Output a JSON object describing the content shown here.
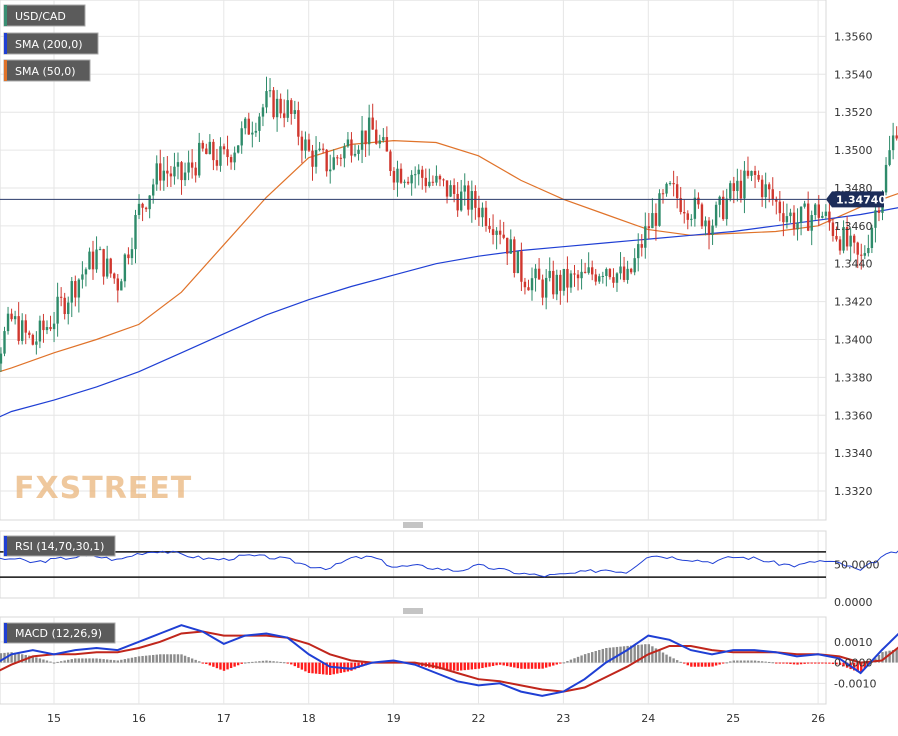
{
  "chart_data": [
    {
      "type": "line",
      "panel": "price",
      "legend_placement": "top-left",
      "series": [
        {
          "name": "USD/CAD",
          "kind": "candlestick",
          "color": "#3a3a3a",
          "x": [
            14.0,
            14.25,
            14.5,
            14.75,
            15.0,
            15.25,
            15.5,
            15.75,
            16.0,
            16.25,
            16.5,
            16.75,
            17.0,
            17.25,
            17.5,
            17.75,
            18.0,
            18.25,
            18.5,
            18.75,
            19.0,
            19.25,
            19.5,
            19.75,
            20.0,
            20.25,
            20.5,
            20.75,
            21.0,
            21.25,
            21.5,
            21.75,
            22.0,
            22.25,
            22.5,
            22.75,
            23.0,
            23.25,
            23.5,
            23.75,
            24.0,
            24.25,
            24.5,
            24.75,
            25.0,
            25.25,
            25.5,
            25.75,
            25.85
          ],
          "values": [
            1.3355,
            1.3385,
            1.341,
            1.3398,
            1.3412,
            1.343,
            1.3445,
            1.343,
            1.3468,
            1.349,
            1.3485,
            1.3498,
            1.3495,
            1.351,
            1.3525,
            1.3522,
            1.3498,
            1.3492,
            1.3505,
            1.351,
            1.349,
            1.3488,
            1.3482,
            1.3476,
            1.347,
            1.346,
            1.3435,
            1.3428,
            1.343,
            1.3432,
            1.344,
            1.343,
            1.346,
            1.3478,
            1.347,
            1.3462,
            1.3478,
            1.3486,
            1.3472,
            1.3462,
            1.3468,
            1.3455,
            1.344,
            1.348,
            1.3528,
            1.3525,
            1.352,
            1.3498,
            1.3474
          ]
        },
        {
          "name": "SMA (200,0)",
          "color": "#1f3fd4",
          "x": [
            14.0,
            14.5,
            15.0,
            15.5,
            16.0,
            16.5,
            17.0,
            17.5,
            18.0,
            18.5,
            19.0,
            19.5,
            20.0,
            20.5,
            21.0,
            21.5,
            22.0,
            22.5,
            23.0,
            23.5,
            24.0,
            24.5,
            25.0,
            25.5,
            25.85
          ],
          "values": [
            1.3352,
            1.3362,
            1.3368,
            1.3375,
            1.3383,
            1.3393,
            1.3403,
            1.3413,
            1.3421,
            1.3428,
            1.3434,
            1.344,
            1.3444,
            1.3447,
            1.3449,
            1.3451,
            1.3453,
            1.3455,
            1.3457,
            1.346,
            1.3463,
            1.3466,
            1.347,
            1.3476,
            1.3479
          ]
        },
        {
          "name": "SMA (50,0)",
          "color": "#e0732a",
          "x": [
            14.0,
            14.5,
            15.0,
            15.5,
            16.0,
            16.5,
            17.0,
            17.5,
            18.0,
            18.5,
            19.0,
            19.5,
            20.0,
            20.5,
            21.0,
            21.5,
            22.0,
            22.5,
            23.0,
            23.5,
            24.0,
            24.5,
            25.0,
            25.5,
            25.85
          ],
          "values": [
            1.3378,
            1.3385,
            1.3393,
            1.34,
            1.3408,
            1.3425,
            1.345,
            1.3475,
            1.3496,
            1.3503,
            1.3505,
            1.3504,
            1.3497,
            1.3484,
            1.3474,
            1.3466,
            1.3458,
            1.3455,
            1.3456,
            1.3457,
            1.346,
            1.347,
            1.3478,
            1.3486,
            1.3488
          ]
        }
      ],
      "y_ticks": [
        "1.3320",
        "1.3340",
        "1.3360",
        "1.3380",
        "1.3400",
        "1.3420",
        "1.3440",
        "1.3460",
        "1.3480",
        "1.3500",
        "1.3520",
        "1.3540",
        "1.3560"
      ],
      "ylim": [
        1.331,
        1.3575
      ],
      "last_price": "1.34740",
      "grid": true
    },
    {
      "type": "line",
      "panel": "rsi",
      "series": [
        {
          "name": "RSI (14,70,30,1)",
          "color": "#1f3fd4",
          "x": [
            14.0,
            14.25,
            14.5,
            14.75,
            15.0,
            15.25,
            15.5,
            15.75,
            16.0,
            16.25,
            16.5,
            16.75,
            17.0,
            17.25,
            17.5,
            17.75,
            18.0,
            18.25,
            18.5,
            18.75,
            19.0,
            19.25,
            19.5,
            19.75,
            20.0,
            20.25,
            20.5,
            20.75,
            21.0,
            21.25,
            21.5,
            21.75,
            22.0,
            22.25,
            22.5,
            22.75,
            23.0,
            23.25,
            23.5,
            23.75,
            24.0,
            24.25,
            24.5,
            24.75,
            25.0,
            25.25,
            25.5,
            25.75,
            25.85
          ],
          "values": [
            45,
            55,
            60,
            53,
            58,
            62,
            63,
            57,
            68,
            72,
            66,
            60,
            58,
            64,
            62,
            58,
            48,
            44,
            60,
            62,
            46,
            48,
            44,
            40,
            48,
            42,
            36,
            32,
            34,
            38,
            42,
            38,
            65,
            62,
            58,
            54,
            62,
            60,
            52,
            48,
            56,
            52,
            40,
            62,
            74,
            68,
            66,
            56,
            48
          ]
        }
      ],
      "reference_lines": [
        70,
        30
      ],
      "y_ticks": [
        "0.0000",
        "50.0000"
      ],
      "ylim": [
        0,
        100
      ],
      "grid": true
    },
    {
      "type": "bar",
      "panel": "macd",
      "series": [
        {
          "name": "MACD (12,26,9)",
          "kind": "line",
          "color": "#1f3fd4",
          "x": [
            14.0,
            14.25,
            14.5,
            14.75,
            15.0,
            15.25,
            15.5,
            15.75,
            16.0,
            16.25,
            16.5,
            16.75,
            17.0,
            17.25,
            17.5,
            17.75,
            18.0,
            18.25,
            18.5,
            18.75,
            19.0,
            19.25,
            19.5,
            19.75,
            20.0,
            20.25,
            20.5,
            20.75,
            21.0,
            21.25,
            21.5,
            21.75,
            22.0,
            22.25,
            22.5,
            22.75,
            23.0,
            23.25,
            23.5,
            23.75,
            24.0,
            24.25,
            24.5,
            24.75,
            25.0,
            25.25,
            25.5,
            25.75,
            25.85
          ],
          "values": [
            -0.0006,
            -0.0002,
            0.0004,
            0.0006,
            0.0004,
            0.0006,
            0.0007,
            0.0006,
            0.001,
            0.0014,
            0.0018,
            0.0015,
            0.0009,
            0.0013,
            0.0014,
            0.0012,
            0.0004,
            -0.0002,
            -0.0003,
            0.0,
            0.0001,
            -0.0001,
            -0.0005,
            -0.0009,
            -0.0011,
            -0.001,
            -0.0014,
            -0.0016,
            -0.0014,
            -0.0008,
            0.0,
            0.0006,
            0.0013,
            0.0011,
            0.0006,
            0.0004,
            0.0006,
            0.0006,
            0.0005,
            0.0003,
            0.0004,
            0.0002,
            -0.0005,
            0.0006,
            0.0016,
            0.0014,
            0.0007,
            0.0002,
            0.0
          ]
        },
        {
          "name": "Signal",
          "kind": "line",
          "color": "#c0261c",
          "x": [
            14.0,
            14.25,
            14.5,
            14.75,
            15.0,
            15.25,
            15.5,
            15.75,
            16.0,
            16.25,
            16.5,
            16.75,
            17.0,
            17.25,
            17.5,
            17.75,
            18.0,
            18.25,
            18.5,
            18.75,
            19.0,
            19.25,
            19.5,
            19.75,
            20.0,
            20.25,
            20.5,
            20.75,
            21.0,
            21.25,
            21.5,
            21.75,
            22.0,
            22.25,
            22.5,
            22.75,
            23.0,
            23.25,
            23.5,
            23.75,
            24.0,
            24.25,
            24.5,
            24.75,
            25.0,
            25.25,
            25.5,
            25.75,
            25.85
          ],
          "values": [
            -0.0008,
            -0.0006,
            -0.0001,
            0.0003,
            0.0004,
            0.0004,
            0.0005,
            0.0005,
            0.0007,
            0.001,
            0.0014,
            0.0015,
            0.0013,
            0.0013,
            0.0013,
            0.0012,
            0.0009,
            0.0004,
            0.0001,
            0.0,
            0.0,
            0.0,
            -0.0002,
            -0.0005,
            -0.0008,
            -0.0009,
            -0.0011,
            -0.0013,
            -0.0014,
            -0.0012,
            -0.0007,
            -0.0002,
            0.0004,
            0.0008,
            0.0008,
            0.0006,
            0.0005,
            0.0005,
            0.0005,
            0.0004,
            0.0004,
            0.0003,
            0.0,
            0.0001,
            0.0009,
            0.0013,
            0.0011,
            0.0007,
            0.0003
          ]
        }
      ],
      "y_ticks": [
        "-0.0010",
        "0.0000",
        "0.0010"
      ],
      "ylim": [
        -0.0019,
        0.0021
      ],
      "histogram_colors": {
        "positive": "#8c8c8c",
        "negative": "#ff1c1c"
      },
      "grid": true
    }
  ],
  "x_axis": {
    "ticks": [
      "15",
      "16",
      "17",
      "18",
      "19",
      "22",
      "23",
      "24",
      "25",
      "26"
    ],
    "tick_positions": [
      15,
      16,
      17,
      18,
      19,
      20,
      21,
      22,
      23,
      24
    ]
  },
  "legend": {
    "symbol": {
      "label": "USD/CAD",
      "accent": "#3a8f73"
    },
    "sma200": {
      "label": "SMA (200,0)",
      "accent": "#1f3fd4"
    },
    "sma50": {
      "label": "SMA (50,0)",
      "accent": "#e0732a"
    },
    "rsi": {
      "label": "RSI (14,70,30,1)",
      "accent": "#1f3fd4"
    },
    "macd": {
      "label": "MACD (12,26,9)",
      "accent": "#1f3fd4"
    }
  },
  "price_label": "1.34740",
  "watermark": "FXSTREET",
  "colors": {
    "up": "#2e8b6a",
    "down": "#d0372e",
    "grid": "#e6e6e6",
    "legend_bg": "#5b5b5b"
  }
}
